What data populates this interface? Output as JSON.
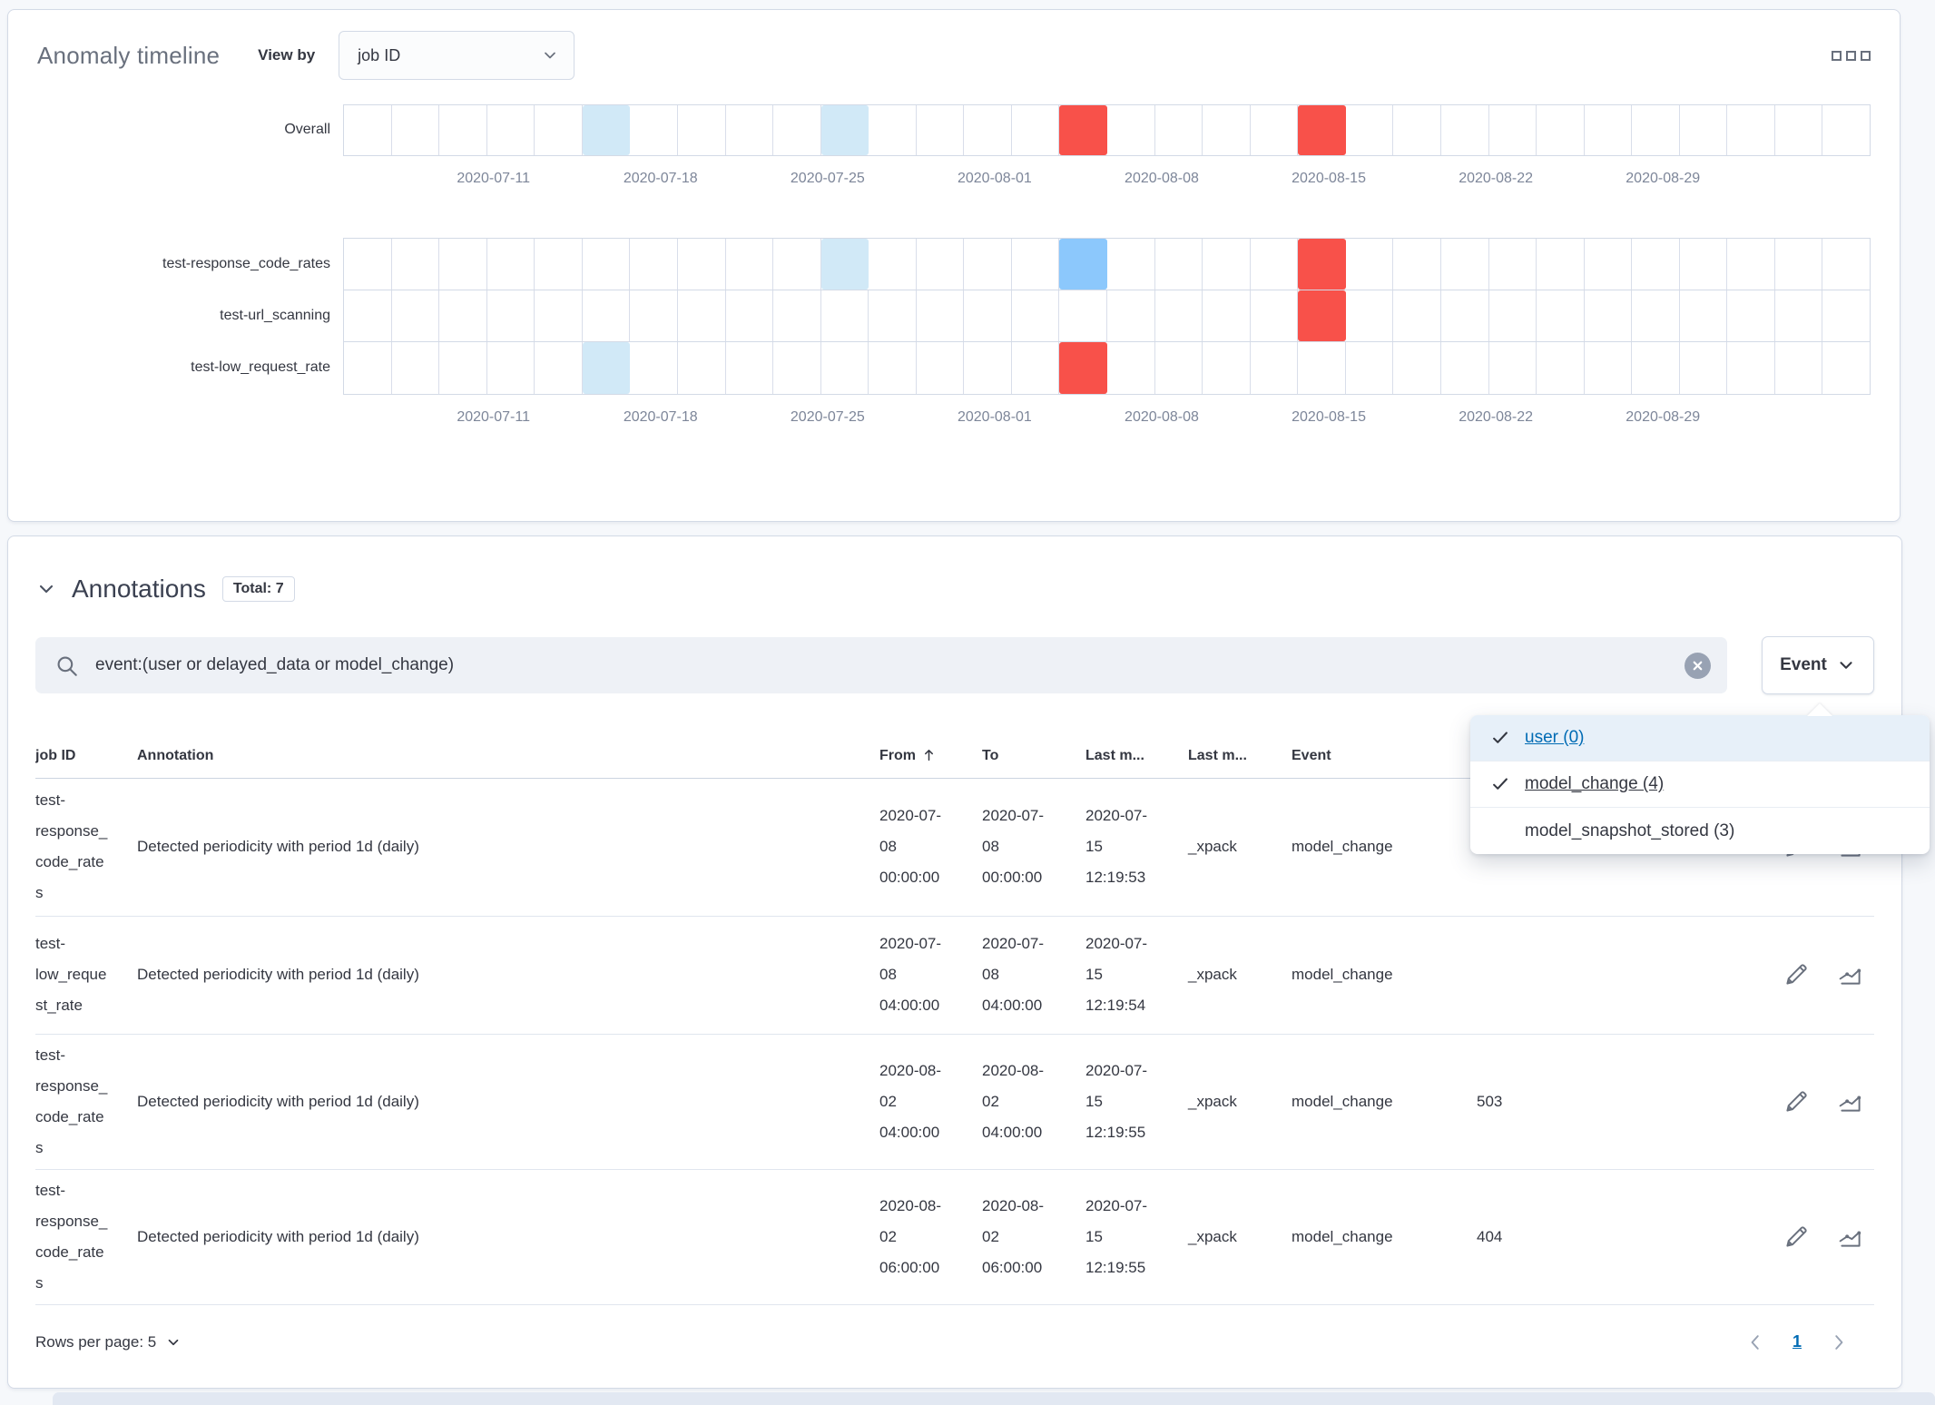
{
  "anomaly_timeline": {
    "title": "Anomaly timeline",
    "view_by_label": "View by",
    "view_by_value": "job ID",
    "cells_per_lane": 32,
    "severity_colors": {
      "low": "#d1e9f7",
      "medium": "#8cc8fc",
      "critical": "#f8514a"
    },
    "axis_labels": [
      "2020-07-11",
      "2020-07-18",
      "2020-07-25",
      "2020-08-01",
      "2020-08-08",
      "2020-08-15",
      "2020-08-22",
      "2020-08-29"
    ],
    "overall_lane": {
      "label": "Overall",
      "marked": [
        {
          "index": 5,
          "severity": "low"
        },
        {
          "index": 10,
          "severity": "low"
        },
        {
          "index": 15,
          "severity": "critical"
        },
        {
          "index": 20,
          "severity": "critical"
        }
      ]
    },
    "job_lanes": [
      {
        "label": "test-response_code_rates",
        "marked": [
          {
            "index": 10,
            "severity": "low"
          },
          {
            "index": 15,
            "severity": "medium"
          },
          {
            "index": 20,
            "severity": "critical"
          }
        ]
      },
      {
        "label": "test-url_scanning",
        "marked": [
          {
            "index": 20,
            "severity": "critical"
          }
        ]
      },
      {
        "label": "test-low_request_rate",
        "marked": [
          {
            "index": 5,
            "severity": "low"
          },
          {
            "index": 15,
            "severity": "critical"
          }
        ]
      }
    ]
  },
  "annotations": {
    "title": "Annotations",
    "total_badge": "Total: 7",
    "search": {
      "value": "event:(user or delayed_data or model_change)"
    },
    "event_filter": {
      "label": "Event",
      "options": [
        {
          "label": "user (0)",
          "checked": true,
          "active": true,
          "underlined": true
        },
        {
          "label": "model_change (4)",
          "checked": true,
          "active": false,
          "underlined": true
        },
        {
          "label": "model_snapshot_stored (3)",
          "checked": false,
          "active": false,
          "underlined": false
        }
      ]
    },
    "table": {
      "headers": {
        "job_id": "job ID",
        "annotation": "Annotation",
        "from": "From",
        "to": "To",
        "last_modified_date": "Last m...",
        "last_modified_by": "Last m...",
        "event": "Event"
      },
      "rows": [
        {
          "job_id": "test-response_code_rates",
          "annotation": "Detected periodicity with period 1d (daily)",
          "from": "2020-07-08 00:00:00",
          "to": "2020-07-08 00:00:00",
          "last_modified_date": "2020-07-15 12:19:53",
          "last_modified_by": "_xpack",
          "event": "model_change",
          "label": ""
        },
        {
          "job_id": "test-low_request_rate",
          "annotation": "Detected periodicity with period 1d (daily)",
          "from": "2020-07-08 04:00:00",
          "to": "2020-07-08 04:00:00",
          "last_modified_date": "2020-07-15 12:19:54",
          "last_modified_by": "_xpack",
          "event": "model_change",
          "label": ""
        },
        {
          "job_id": "test-response_code_rates",
          "annotation": "Detected periodicity with period 1d (daily)",
          "from": "2020-08-02 04:00:00",
          "to": "2020-08-02 04:00:00",
          "last_modified_date": "2020-07-15 12:19:55",
          "last_modified_by": "_xpack",
          "event": "model_change",
          "label": "503"
        },
        {
          "job_id": "test-response_code_rates",
          "annotation": "Detected periodicity with period 1d (daily)",
          "from": "2020-08-02 06:00:00",
          "to": "2020-08-02 06:00:00",
          "last_modified_date": "2020-07-15 12:19:55",
          "last_modified_by": "_xpack",
          "event": "model_change",
          "label": "404"
        }
      ]
    },
    "pagination": {
      "rows_per_page_label": "Rows per page: 5",
      "page": "1"
    }
  }
}
